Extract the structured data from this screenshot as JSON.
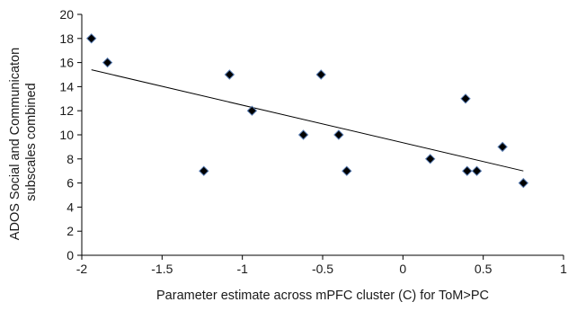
{
  "chart_data": {
    "type": "scatter",
    "title": "",
    "xlabel": "Parameter estimate across mPFC cluster (C) for ToM>PC",
    "ylabel_lines": [
      "ADOS Social and Communicaton",
      "subscales combined"
    ],
    "xlim": [
      -2,
      1
    ],
    "ylim": [
      0,
      20
    ],
    "x_ticks": [
      -2,
      -1.5,
      -1,
      -0.5,
      0,
      0.5,
      1
    ],
    "x_tick_labels": [
      "-2",
      "-1.5",
      "-1",
      "-0.5",
      "0",
      "0.5",
      "1"
    ],
    "y_ticks": [
      0,
      2,
      4,
      6,
      8,
      10,
      12,
      14,
      16,
      18,
      20
    ],
    "y_tick_labels": [
      "0",
      "2",
      "4",
      "6",
      "8",
      "10",
      "12",
      "14",
      "16",
      "18",
      "20"
    ],
    "grid": false,
    "legend": "none",
    "marker": "diamond",
    "marker_color": "#000000",
    "marker_edge_color": "#5b7fb5",
    "points": [
      {
        "x": -1.94,
        "y": 18
      },
      {
        "x": -1.84,
        "y": 16
      },
      {
        "x": -1.24,
        "y": 7
      },
      {
        "x": -1.08,
        "y": 15
      },
      {
        "x": -0.94,
        "y": 12
      },
      {
        "x": -0.62,
        "y": 10
      },
      {
        "x": -0.51,
        "y": 15
      },
      {
        "x": -0.4,
        "y": 10
      },
      {
        "x": -0.35,
        "y": 7
      },
      {
        "x": 0.17,
        "y": 8
      },
      {
        "x": 0.39,
        "y": 13
      },
      {
        "x": 0.4,
        "y": 7
      },
      {
        "x": 0.46,
        "y": 7
      },
      {
        "x": 0.62,
        "y": 9
      },
      {
        "x": 0.75,
        "y": 6
      }
    ],
    "trendline": {
      "type": "linear",
      "from": {
        "x": -1.94,
        "y": 15.4
      },
      "to": {
        "x": 0.75,
        "y": 7.0
      }
    }
  }
}
